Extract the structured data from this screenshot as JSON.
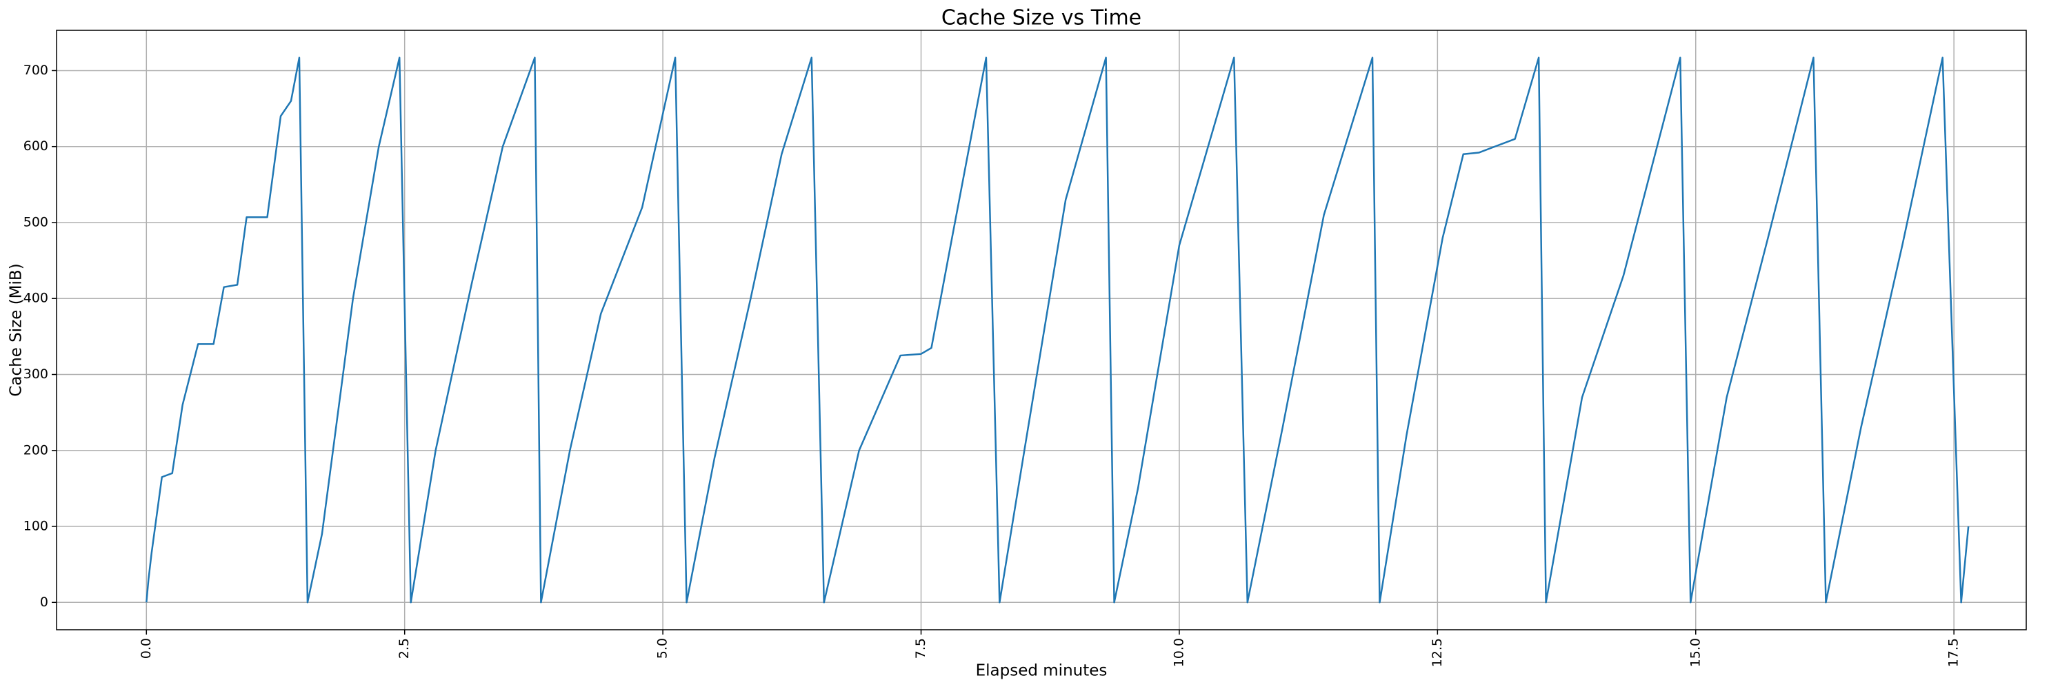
{
  "chart_data": {
    "type": "line",
    "title": "Cache Size vs Time",
    "xlabel": "Elapsed minutes",
    "ylabel": "Cache Size (MiB)",
    "x": [
      0.0,
      0.02,
      0.05,
      0.15,
      0.25,
      0.35,
      0.5,
      0.65,
      0.75,
      0.88,
      0.97,
      1.17,
      1.3,
      1.4,
      1.48,
      1.56,
      1.7,
      2.0,
      2.25,
      2.45,
      2.56,
      2.8,
      3.15,
      3.45,
      3.76,
      3.82,
      4.1,
      4.4,
      4.8,
      5.12,
      5.23,
      5.5,
      5.85,
      6.15,
      6.44,
      6.56,
      6.9,
      7.3,
      7.5,
      7.6,
      7.8,
      8.13,
      8.26,
      8.5,
      8.9,
      9.29,
      9.37,
      9.6,
      10.0,
      10.53,
      10.66,
      11.0,
      11.4,
      11.87,
      11.94,
      12.2,
      12.55,
      12.75,
      12.9,
      13.25,
      13.48,
      13.55,
      13.9,
      14.3,
      14.85,
      14.95,
      15.3,
      15.7,
      16.14,
      16.26,
      16.6,
      17.0,
      17.39,
      17.57,
      17.64
    ],
    "series": [
      {
        "color": "#1f77b4",
        "values": [
          0,
          30,
          65,
          165,
          170,
          260,
          340,
          340,
          415,
          418,
          507,
          507,
          640,
          660,
          717,
          0,
          90,
          400,
          600,
          717,
          0,
          200,
          420,
          600,
          717,
          0,
          200,
          380,
          520,
          717,
          0,
          190,
          400,
          590,
          717,
          0,
          200,
          325,
          327,
          335,
          480,
          717,
          0,
          200,
          530,
          717,
          0,
          150,
          470,
          717,
          0,
          230,
          510,
          717,
          0,
          220,
          480,
          590,
          592,
          610,
          717,
          0,
          270,
          430,
          717,
          0,
          270,
          480,
          717,
          0,
          230,
          470,
          717,
          0,
          100
        ]
      }
    ],
    "xlim": [
      -0.87,
      18.2
    ],
    "ylim": [
      -36,
      753
    ],
    "xticks": [
      {
        "value": 0,
        "label": "0.0"
      },
      2.5,
      {
        "value": 5,
        "label": "5.0"
      },
      7.5,
      {
        "value": 10,
        "label": "10.0"
      },
      12.5,
      {
        "value": 15,
        "label": "15.0"
      },
      17.5
    ],
    "yticks": [
      0,
      100,
      200,
      300,
      400,
      500,
      600,
      700
    ],
    "grid": true
  }
}
